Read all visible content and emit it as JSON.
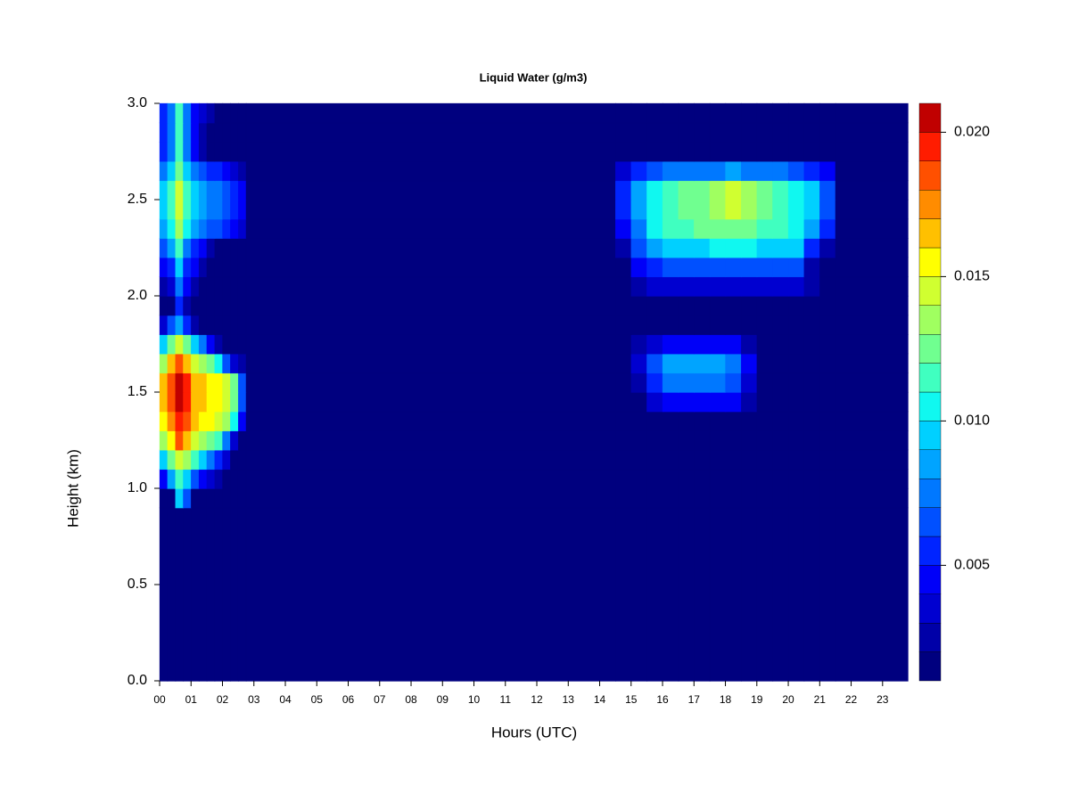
{
  "chart_data": {
    "type": "heatmap",
    "title": "Liquid Water (g/m3)",
    "x_label": "Hours (UTC)",
    "y_label": "Height (km)",
    "xlim": [
      0,
      23.8
    ],
    "ylim": [
      0,
      3
    ],
    "xticks": [
      {
        "value": 0,
        "label": "00"
      },
      {
        "value": 1,
        "label": "01"
      },
      {
        "value": 2,
        "label": "02"
      },
      {
        "value": 3,
        "label": "03"
      },
      {
        "value": 4,
        "label": "04"
      },
      {
        "value": 5,
        "label": "05"
      },
      {
        "value": 6,
        "label": "06"
      },
      {
        "value": 7,
        "label": "07"
      },
      {
        "value": 8,
        "label": "08"
      },
      {
        "value": 9,
        "label": "09"
      },
      {
        "value": 10,
        "label": "10"
      },
      {
        "value": 11,
        "label": "11"
      },
      {
        "value": 12,
        "label": "12"
      },
      {
        "value": 13,
        "label": "13"
      },
      {
        "value": 14,
        "label": "14"
      },
      {
        "value": 15,
        "label": "15"
      },
      {
        "value": 16,
        "label": "16"
      },
      {
        "value": 17,
        "label": "17"
      },
      {
        "value": 18,
        "label": "18"
      },
      {
        "value": 19,
        "label": "19"
      },
      {
        "value": 20,
        "label": "20"
      },
      {
        "value": 21,
        "label": "21"
      },
      {
        "value": 22,
        "label": "22"
      },
      {
        "value": 23,
        "label": "23"
      }
    ],
    "yticks": [
      {
        "value": 0,
        "label": "0.0"
      },
      0.5,
      {
        "value": 1,
        "label": "1.0"
      },
      1.5,
      {
        "value": 2,
        "label": "2.0"
      },
      2.5,
      {
        "value": 3,
        "label": "3.0"
      }
    ],
    "levels": [
      0.001,
      0.002,
      0.003,
      0.004,
      0.005,
      0.006,
      0.007,
      0.008,
      0.009,
      0.01,
      0.011,
      0.012,
      0.013,
      0.014,
      0.015,
      0.016,
      0.017,
      0.018,
      0.019,
      0.02,
      0.021
    ],
    "colors": [
      "#00007f",
      "#0000a8",
      "#0000d0",
      "#0000f8",
      "#0024ff",
      "#0050ff",
      "#0078ff",
      "#00a4ff",
      "#00d0ff",
      "#10f8f0",
      "#40ffc0",
      "#70ff90",
      "#a0ff60",
      "#d0ff30",
      "#ffff00",
      "#ffc000",
      "#ff8c00",
      "#ff5000",
      "#ff1c00",
      "#c00000"
    ],
    "colorbar_ticks": [
      0.005,
      {
        "value": 0.01,
        "label": "0.010"
      },
      0.015,
      {
        "value": 0.02,
        "label": "0.020"
      }
    ],
    "x_edges": [
      0,
      0.25,
      0.5,
      0.75,
      1,
      1.25,
      1.5,
      1.75,
      2,
      2.25,
      2.5,
      2.75,
      14.5,
      15,
      15.5,
      16,
      16.5,
      17,
      17.5,
      18,
      18.5,
      19,
      19.5,
      20,
      20.5,
      21,
      21.5,
      23.8
    ],
    "y_edges": [
      0,
      0.9,
      1.0,
      1.1,
      1.2,
      1.3,
      1.4,
      1.5,
      1.6,
      1.7,
      1.8,
      1.9,
      2.0,
      2.1,
      2.2,
      2.3,
      2.4,
      2.5,
      2.6,
      2.7,
      2.8,
      2.9,
      3.0
    ],
    "z": [
      [
        0.001,
        0.001,
        0.001,
        0.001,
        0.001,
        0.001,
        0.001,
        0.001,
        0.001,
        0.001,
        0.001,
        0.001,
        0.001,
        0.001,
        0.001,
        0.001,
        0.001,
        0.001,
        0.001,
        0.001,
        0.001,
        0.001,
        0.001,
        0.001,
        0.001,
        0.001,
        0.001
      ],
      [
        0.001,
        0.001,
        0.009,
        0.006,
        0.001,
        0.001,
        0.001,
        0.001,
        0.001,
        0.001,
        0.001,
        0.001,
        0.001,
        0.001,
        0.001,
        0.001,
        0.001,
        0.001,
        0.001,
        0.001,
        0.001,
        0.001,
        0.001,
        0.001,
        0.001,
        0.001,
        0.001
      ],
      [
        0.004,
        0.008,
        0.011,
        0.009,
        0.006,
        0.004,
        0.003,
        0.002,
        0.001,
        0.001,
        0.001,
        0.001,
        0.001,
        0.001,
        0.001,
        0.001,
        0.001,
        0.001,
        0.001,
        0.001,
        0.001,
        0.001,
        0.001,
        0.001,
        0.001,
        0.001,
        0.001
      ],
      [
        0.009,
        0.012,
        0.014,
        0.013,
        0.011,
        0.009,
        0.007,
        0.005,
        0.003,
        0.001,
        0.001,
        0.001,
        0.001,
        0.001,
        0.001,
        0.001,
        0.001,
        0.001,
        0.001,
        0.001,
        0.001,
        0.001,
        0.001,
        0.001,
        0.001,
        0.001,
        0.001
      ],
      [
        0.013,
        0.015,
        0.018,
        0.016,
        0.014,
        0.013,
        0.012,
        0.011,
        0.007,
        0.003,
        0.001,
        0.001,
        0.001,
        0.001,
        0.001,
        0.001,
        0.001,
        0.001,
        0.001,
        0.001,
        0.001,
        0.001,
        0.001,
        0.001,
        0.001,
        0.001,
        0.001
      ],
      [
        0.015,
        0.017,
        0.019,
        0.018,
        0.016,
        0.015,
        0.015,
        0.014,
        0.013,
        0.01,
        0.004,
        0.001,
        0.001,
        0.001,
        0.001,
        0.001,
        0.001,
        0.001,
        0.001,
        0.001,
        0.001,
        0.001,
        0.001,
        0.001,
        0.001,
        0.001,
        0.001
      ],
      [
        0.016,
        0.018,
        0.02,
        0.019,
        0.016,
        0.016,
        0.015,
        0.015,
        0.014,
        0.012,
        0.006,
        0.001,
        0.001,
        0.001,
        0.003,
        0.004,
        0.004,
        0.004,
        0.004,
        0.004,
        0.002,
        0.001,
        0.001,
        0.001,
        0.001,
        0.001,
        0.001
      ],
      [
        0.016,
        0.018,
        0.02,
        0.019,
        0.016,
        0.016,
        0.015,
        0.015,
        0.014,
        0.012,
        0.006,
        0.001,
        0.001,
        0.002,
        0.005,
        0.007,
        0.007,
        0.007,
        0.007,
        0.006,
        0.003,
        0.001,
        0.001,
        0.001,
        0.001,
        0.001,
        0.001
      ],
      [
        0.013,
        0.016,
        0.018,
        0.016,
        0.014,
        0.013,
        0.012,
        0.01,
        0.006,
        0.003,
        0.002,
        0.001,
        0.001,
        0.003,
        0.006,
        0.008,
        0.008,
        0.008,
        0.008,
        0.007,
        0.004,
        0.001,
        0.001,
        0.001,
        0.001,
        0.001,
        0.001
      ],
      [
        0.009,
        0.012,
        0.014,
        0.012,
        0.009,
        0.007,
        0.004,
        0.002,
        0.001,
        0.001,
        0.001,
        0.001,
        0.001,
        0.002,
        0.003,
        0.004,
        0.004,
        0.004,
        0.004,
        0.004,
        0.002,
        0.001,
        0.001,
        0.001,
        0.001,
        0.001,
        0.001
      ],
      [
        0.003,
        0.006,
        0.008,
        0.005,
        0.002,
        0.001,
        0.001,
        0.001,
        0.001,
        0.001,
        0.001,
        0.001,
        0.001,
        0.001,
        0.001,
        0.001,
        0.001,
        0.001,
        0.001,
        0.001,
        0.001,
        0.001,
        0.001,
        0.001,
        0.001,
        0.001,
        0.001
      ],
      [
        0.001,
        0.001,
        0.005,
        0.002,
        0.001,
        0.001,
        0.001,
        0.001,
        0.001,
        0.001,
        0.001,
        0.001,
        0.001,
        0.001,
        0.001,
        0.001,
        0.001,
        0.001,
        0.001,
        0.001,
        0.001,
        0.001,
        0.001,
        0.001,
        0.001,
        0.001,
        0.001
      ],
      [
        0.002,
        0.003,
        0.007,
        0.004,
        0.002,
        0.001,
        0.001,
        0.001,
        0.001,
        0.001,
        0.001,
        0.001,
        0.001,
        0.002,
        0.003,
        0.003,
        0.003,
        0.003,
        0.003,
        0.003,
        0.003,
        0.003,
        0.003,
        0.003,
        0.002,
        0.001,
        0.001
      ],
      [
        0.004,
        0.005,
        0.009,
        0.005,
        0.004,
        0.002,
        0.001,
        0.001,
        0.001,
        0.001,
        0.001,
        0.001,
        0.001,
        0.004,
        0.005,
        0.006,
        0.006,
        0.006,
        0.006,
        0.006,
        0.006,
        0.006,
        0.006,
        0.006,
        0.002,
        0.001,
        0.001
      ],
      [
        0.006,
        0.008,
        0.011,
        0.007,
        0.005,
        0.004,
        0.002,
        0.001,
        0.001,
        0.001,
        0.001,
        0.001,
        0.002,
        0.006,
        0.008,
        0.009,
        0.009,
        0.009,
        0.01,
        0.01,
        0.01,
        0.009,
        0.009,
        0.009,
        0.005,
        0.002,
        0.001
      ],
      [
        0.008,
        0.01,
        0.013,
        0.01,
        0.008,
        0.007,
        0.006,
        0.006,
        0.005,
        0.004,
        0.003,
        0.001,
        0.004,
        0.007,
        0.01,
        0.011,
        0.011,
        0.012,
        0.012,
        0.012,
        0.012,
        0.011,
        0.011,
        0.01,
        0.008,
        0.005,
        0.001
      ],
      [
        0.009,
        0.011,
        0.014,
        0.011,
        0.009,
        0.008,
        0.007,
        0.007,
        0.006,
        0.005,
        0.004,
        0.001,
        0.005,
        0.008,
        0.01,
        0.011,
        0.012,
        0.012,
        0.013,
        0.014,
        0.013,
        0.012,
        0.011,
        0.01,
        0.009,
        0.006,
        0.001
      ],
      [
        0.009,
        0.011,
        0.014,
        0.011,
        0.009,
        0.008,
        0.007,
        0.007,
        0.006,
        0.005,
        0.004,
        0.001,
        0.005,
        0.008,
        0.01,
        0.011,
        0.012,
        0.012,
        0.013,
        0.014,
        0.013,
        0.012,
        0.011,
        0.01,
        0.009,
        0.006,
        0.001
      ],
      [
        0.007,
        0.009,
        0.012,
        0.009,
        0.007,
        0.006,
        0.005,
        0.005,
        0.004,
        0.003,
        0.002,
        0.001,
        0.003,
        0.005,
        0.006,
        0.007,
        0.007,
        0.007,
        0.007,
        0.008,
        0.007,
        0.007,
        0.007,
        0.006,
        0.005,
        0.004,
        0.001
      ],
      [
        0.005,
        0.007,
        0.011,
        0.007,
        0.004,
        0.002,
        0.001,
        0.001,
        0.001,
        0.001,
        0.001,
        0.001,
        0.001,
        0.001,
        0.001,
        0.001,
        0.001,
        0.001,
        0.001,
        0.001,
        0.001,
        0.001,
        0.001,
        0.001,
        0.001,
        0.001,
        0.001
      ],
      [
        0.005,
        0.007,
        0.011,
        0.007,
        0.004,
        0.002,
        0.001,
        0.001,
        0.001,
        0.001,
        0.001,
        0.001,
        0.001,
        0.001,
        0.001,
        0.001,
        0.001,
        0.001,
        0.001,
        0.001,
        0.001,
        0.001,
        0.001,
        0.001,
        0.001,
        0.001,
        0.001
      ],
      [
        0.005,
        0.007,
        0.011,
        0.007,
        0.004,
        0.003,
        0.002,
        0.001,
        0.001,
        0.001,
        0.001,
        0.001,
        0.001,
        0.001,
        0.001,
        0.001,
        0.001,
        0.001,
        0.001,
        0.001,
        0.001,
        0.001,
        0.001,
        0.001,
        0.001,
        0.001,
        0.001
      ]
    ]
  }
}
